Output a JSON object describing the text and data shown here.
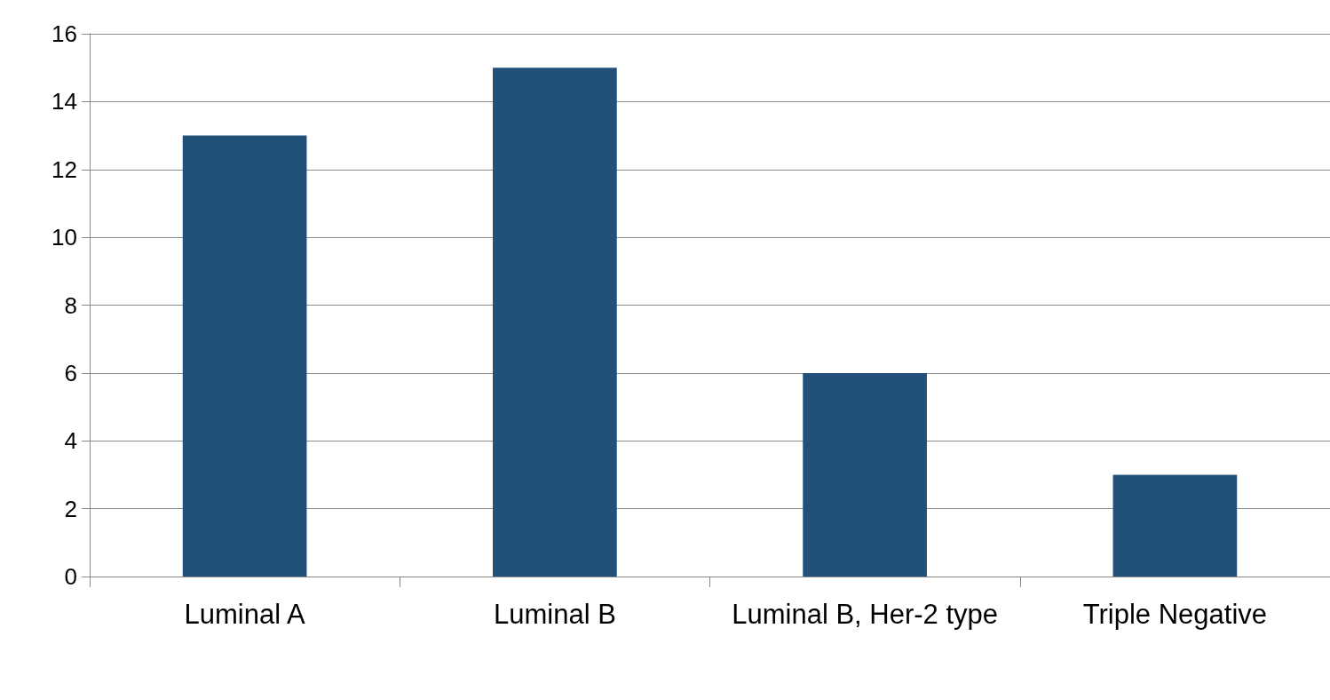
{
  "chart_data": {
    "type": "bar",
    "categories": [
      "Luminal A",
      "Luminal B",
      "Luminal B, Her-2 type",
      "Triple Negative"
    ],
    "values": [
      13,
      15,
      6,
      3
    ],
    "color": "#215078",
    "ylim": [
      0,
      16
    ],
    "yticks": [
      0,
      2,
      4,
      6,
      8,
      10,
      12,
      14,
      16
    ],
    "grid": "y"
  }
}
